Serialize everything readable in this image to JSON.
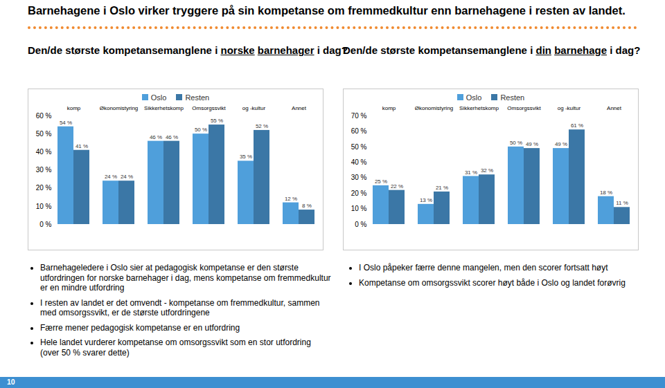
{
  "title": "Barnehagene i Oslo virker tryggere på sin kompetanse om fremmedkultur enn barnehagene i resten av landet.",
  "chart_data": [
    {
      "type": "bar",
      "title": "Den/de største kompetansemanglene i norske barnehager i dag?",
      "categories": [
        "Pedagogisk komp",
        "Økonomistyring",
        "Sikkerhetskomp",
        "Omsorgssvikt",
        "Fremmedspråk og -kultur",
        "Annet"
      ],
      "series": [
        {
          "name": "Oslo",
          "color": "#4f9fdb",
          "values": [
            54,
            24,
            46,
            50,
            35,
            12
          ],
          "value_labels": [
            "54 %",
            "24 %",
            "46 %",
            "50 %",
            "35 %",
            "12 %"
          ]
        },
        {
          "name": "Resten",
          "color": "#3b77a6",
          "values": [
            41,
            24,
            46,
            55,
            52,
            8
          ],
          "value_labels": [
            "41 %",
            "24 %",
            "46 %",
            "55 %",
            "52 %",
            "8 %"
          ]
        }
      ],
      "ylim": [
        0,
        60
      ],
      "yticks": [
        {
          "value": 0,
          "label": "0 %"
        },
        {
          "value": 10,
          "label": "10 %"
        },
        {
          "value": 20,
          "label": "20 %"
        },
        {
          "value": 30,
          "label": "30 %"
        },
        {
          "value": 40,
          "label": "40 %"
        },
        {
          "value": 50,
          "label": "50 %"
        },
        {
          "value": 60,
          "label": "60 %"
        }
      ],
      "data_labels": true,
      "legend": "top"
    },
    {
      "type": "bar",
      "title": "Den/de største kompetansemanglene i din barnehage i dag?",
      "categories": [
        "Pedagogisk komp",
        "Økonomistyring",
        "Sikkerhetskomp",
        "Omsorgssvikt",
        "Fremmedspråk og -kultur",
        "Annet"
      ],
      "series": [
        {
          "name": "Oslo",
          "color": "#4f9fdb",
          "values": [
            25,
            13,
            31,
            50,
            49,
            18
          ],
          "value_labels": [
            "25 %",
            "13 %",
            "31 %",
            "50 %",
            "49 %",
            "18 %"
          ]
        },
        {
          "name": "Resten",
          "color": "#3b77a6",
          "values": [
            22,
            21,
            32,
            49,
            61,
            11
          ],
          "value_labels": [
            "22 %",
            "21 %",
            "32 %",
            "49 %",
            "61 %",
            "11 %"
          ]
        }
      ],
      "ylim": [
        0,
        70
      ],
      "yticks": [
        {
          "value": 0,
          "label": "0 %"
        },
        {
          "value": 10,
          "label": "10 %"
        },
        {
          "value": 20,
          "label": "20 %"
        },
        {
          "value": 30,
          "label": "30 %"
        },
        {
          "value": 40,
          "label": "40 %"
        },
        {
          "value": 50,
          "label": "50 %"
        },
        {
          "value": 60,
          "label": "60 %"
        },
        {
          "value": 70,
          "label": "70 %"
        }
      ],
      "data_labels": true,
      "legend": "top"
    }
  ],
  "notes": {
    "left": [
      "Barnehageledere i Oslo sier at pedagogisk kompetanse er den største utfordringen for norske barnehager i dag, mens kompetanse om fremmedkultur er en mindre utfordring",
      "I resten av landet er det omvendt - kompetanse om fremmedkultur, sammen med omsorgssvikt, er de største utfordringene",
      "Færre mener pedagogisk kompetanse er en utfordring",
      "Hele landet vurderer kompetanse om omsorgssvikt som en stor utfordring (over 50 % svarer dette)"
    ],
    "right": [
      "I Oslo påpeker færre denne mangelen, men den scorer fortsatt høyt",
      "Kompetanse om omsorgssvikt scorer høyt både i Oslo og landet forøvrig"
    ]
  },
  "page_number": 10
}
